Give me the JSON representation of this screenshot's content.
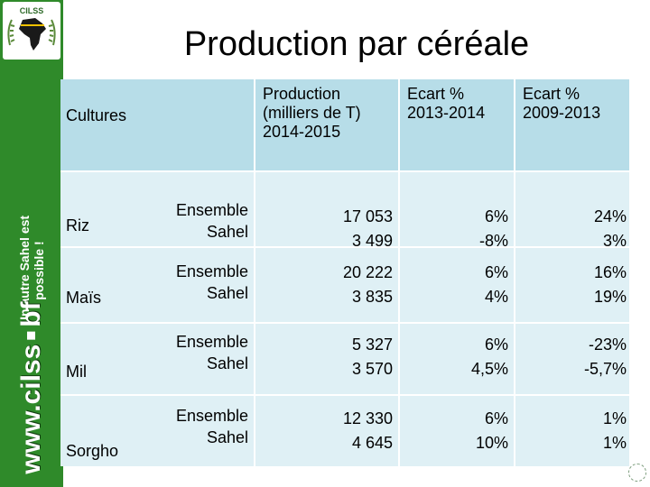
{
  "brand": {
    "logo_text": "CILSS",
    "tagline_line1": "Un autre Sahel est",
    "tagline_line2": "possible !",
    "url_part1": "www.cilss",
    "url_part2": "bf",
    "band_color": "#2f8a2a"
  },
  "page": {
    "title": "Production par céréale"
  },
  "table": {
    "headers": {
      "cultures": "Cultures",
      "production_line1": "Production",
      "production_line2": "(milliers de T)",
      "production_line3": "2014-2015",
      "ecart1_line1": "Ecart %",
      "ecart1_line2": "2013-2014",
      "ecart2_line1": "Ecart %",
      "ecart2_line2": "2009-2013"
    },
    "header_color": "#b7dde8",
    "row_color": "#dff0f5",
    "rows": [
      {
        "crop": "Riz",
        "scope1": "Ensemble",
        "scope2": "Sahel",
        "prod1": "17 053",
        "prod2": "3 499",
        "ecart1a": "6%",
        "ecart1b": "-8%",
        "ecart2a": "24%",
        "ecart2b": "3%"
      },
      {
        "crop": "Maïs",
        "scope1": "Ensemble",
        "scope2": "Sahel",
        "prod1": "20 222",
        "prod2": "3 835",
        "ecart1a": "6%",
        "ecart1b": "4%",
        "ecart2a": "16%",
        "ecart2b": "19%"
      },
      {
        "crop": "Mil",
        "scope1": "Ensemble",
        "scope2": "Sahel",
        "prod1": "5 327",
        "prod2": "3 570",
        "ecart1a": "6%",
        "ecart1b": "4,5%",
        "ecart2a": "-23%",
        "ecart2b": "-5,7%"
      },
      {
        "crop": "Sorgho",
        "scope1": "Ensemble",
        "scope2": "Sahel",
        "prod1": "12 330",
        "prod2": "4 645",
        "ecart1a": "6%",
        "ecart1b": "10%",
        "ecart2a": "1%",
        "ecart2b": "1%"
      }
    ]
  }
}
